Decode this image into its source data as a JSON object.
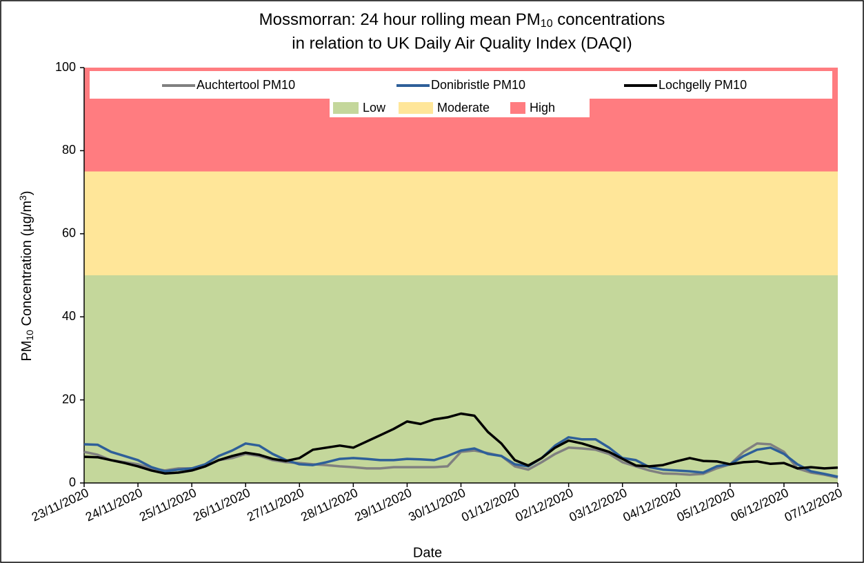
{
  "chart_data": {
    "type": "line",
    "title": [
      "Mossmorran: 24 hour rolling mean PM",
      "10",
      " concentrations",
      "in relation to UK Daily Air Quality Index (DAQI)"
    ],
    "y_label": [
      "PM",
      "10",
      " Concentration (µg/m",
      "3",
      ")"
    ],
    "x_label": "Date",
    "xlim": [
      0,
      14
    ],
    "xticks": [
      {
        "value": 0,
        "label": "23/11/2020"
      },
      {
        "value": 1,
        "label": "24/11/2020"
      },
      {
        "value": 2,
        "label": "25/11/2020"
      },
      {
        "value": 3,
        "label": "26/11/2020"
      },
      {
        "value": 4,
        "label": "27/11/2020"
      },
      {
        "value": 5,
        "label": "28/11/2020"
      },
      {
        "value": 6,
        "label": "29/11/2020"
      },
      {
        "value": 7,
        "label": "30/11/2020"
      },
      {
        "value": 8,
        "label": "01/12/2020"
      },
      {
        "value": 9,
        "label": "02/12/2020"
      },
      {
        "value": 10,
        "label": "03/12/2020"
      },
      {
        "value": 11,
        "label": "04/12/2020"
      },
      {
        "value": 12,
        "label": "05/12/2020"
      },
      {
        "value": 13,
        "label": "06/12/2020"
      },
      {
        "value": 14,
        "label": "07/12/2020"
      }
    ],
    "ylim": [
      0,
      100
    ],
    "yticks": [
      0,
      20,
      40,
      60,
      80,
      100
    ],
    "bands": [
      {
        "name": "Low",
        "from": 0,
        "to": 50,
        "color": "#c4d79b"
      },
      {
        "name": "Moderate",
        "from": 50,
        "to": 75,
        "color": "#ffe699"
      },
      {
        "name": "High",
        "from": 75,
        "to": 100,
        "color": "#ff7c80"
      }
    ],
    "x": [
      0,
      0.25,
      0.5,
      0.75,
      1,
      1.25,
      1.5,
      1.75,
      2,
      2.25,
      2.5,
      2.75,
      3,
      3.25,
      3.5,
      3.75,
      4,
      4.25,
      4.5,
      4.75,
      5,
      5.25,
      5.5,
      5.75,
      6,
      6.25,
      6.5,
      6.75,
      7,
      7.25,
      7.5,
      7.75,
      8,
      8.25,
      8.5,
      8.75,
      9,
      9.25,
      9.5,
      9.75,
      10,
      10.25,
      10.5,
      10.75,
      11,
      11.25,
      11.5,
      11.75,
      12,
      12.25,
      12.5,
      12.75,
      13,
      13.25,
      13.5,
      13.75,
      14
    ],
    "series": [
      {
        "name": "Auchtertool PM10",
        "color": "#808080",
        "values": [
          7.5,
          6.8,
          5.5,
          5.0,
          4.5,
          3.5,
          3.0,
          3.5,
          3.5,
          4.0,
          5.5,
          6.0,
          7.0,
          6.5,
          5.5,
          5.0,
          4.8,
          4.5,
          4.3,
          4.0,
          3.8,
          3.5,
          3.5,
          3.8,
          3.8,
          3.8,
          3.8,
          4.0,
          7.5,
          7.8,
          7.2,
          6.5,
          4.0,
          3.2,
          5.0,
          7.0,
          8.5,
          8.3,
          8.0,
          7.0,
          5.0,
          4.0,
          3.0,
          2.3,
          2.2,
          2.0,
          2.2,
          3.5,
          4.5,
          7.5,
          9.5,
          9.3,
          7.5,
          3.5,
          2.5,
          2.0,
          1.3
        ]
      },
      {
        "name": "Donibristle PM10",
        "color": "#2e5f99",
        "values": [
          9.3,
          9.2,
          7.5,
          6.5,
          5.5,
          3.8,
          2.8,
          3.2,
          3.5,
          4.5,
          6.5,
          7.8,
          9.5,
          9.0,
          7.0,
          5.5,
          4.5,
          4.3,
          5.0,
          5.8,
          6.0,
          5.8,
          5.5,
          5.5,
          5.8,
          5.7,
          5.5,
          6.5,
          7.8,
          8.3,
          7.0,
          6.5,
          4.5,
          4.0,
          6.0,
          9.0,
          11.0,
          10.5,
          10.5,
          8.5,
          6.0,
          5.5,
          3.8,
          3.2,
          3.0,
          2.8,
          2.5,
          4.0,
          4.5,
          6.5,
          8.0,
          8.5,
          7.0,
          4.5,
          2.8,
          2.2,
          1.5
        ]
      },
      {
        "name": "Lochgelly PM10",
        "color": "#000000",
        "values": [
          6.3,
          6.2,
          5.5,
          4.8,
          4.0,
          3.0,
          2.3,
          2.5,
          3.0,
          4.0,
          5.5,
          6.5,
          7.3,
          6.8,
          5.8,
          5.3,
          6.0,
          8.0,
          8.5,
          9.0,
          8.5,
          10.0,
          11.5,
          13.0,
          14.8,
          14.2,
          15.3,
          15.8,
          16.7,
          16.2,
          12.3,
          9.5,
          5.5,
          4.2,
          6.0,
          8.5,
          10.2,
          9.5,
          8.5,
          7.5,
          5.8,
          4.2,
          4.0,
          4.3,
          5.2,
          6.0,
          5.3,
          5.2,
          4.5,
          5.0,
          5.2,
          4.6,
          4.8,
          3.5,
          3.8,
          3.5,
          3.7
        ]
      }
    ]
  }
}
